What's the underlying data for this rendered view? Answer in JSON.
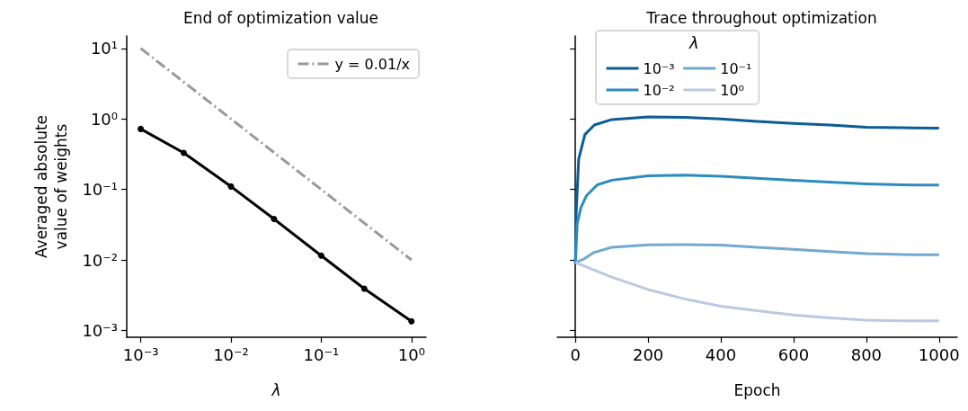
{
  "chart_data": [
    {
      "type": "line",
      "title": "End of optimization value",
      "xlabel": "λ",
      "ylabel": "Averaged absolute\nvalue of weights",
      "log": "xy",
      "legend": "top right",
      "xlim": [
        0.0007,
        1.45
      ],
      "xticks": [
        {
          "value": 0.001,
          "label": "10⁻³"
        },
        {
          "value": 0.01,
          "label": "10⁻²"
        },
        {
          "value": 0.1,
          "label": "10⁻¹"
        },
        {
          "value": 1,
          "label": "10⁰"
        }
      ],
      "ylim": [
        0.0008,
        15
      ],
      "yticks": [
        {
          "value": 0.001,
          "label": "10⁻³"
        },
        {
          "value": 0.01,
          "label": "10⁻²"
        },
        {
          "value": 0.1,
          "label": "10⁻¹"
        },
        {
          "value": 1,
          "label": "10⁰"
        },
        {
          "value": 10,
          "label": "10¹"
        }
      ],
      "x": [
        0.001,
        0.003,
        0.01,
        0.03,
        0.1,
        0.3,
        1
      ],
      "series": [
        {
          "color": "#000000",
          "marker": "circle",
          "line_style": "solid",
          "values": [
            0.72,
            0.33,
            0.11,
            0.038,
            0.0115,
            0.0039,
            0.00135
          ]
        },
        {
          "name": "y = 0.01/x",
          "color": "#999999",
          "marker": "none",
          "line_style": "dashed",
          "x": [
            0.001,
            1
          ],
          "values": [
            10,
            0.01
          ]
        }
      ]
    },
    {
      "type": "line",
      "title": "Trace throughout optimization",
      "xlabel": "Epoch",
      "log": "y",
      "legend": "top",
      "legend_title": "λ",
      "tick_labels": "x",
      "xlim": [
        -50,
        1050
      ],
      "xticks": [
        0,
        200,
        400,
        600,
        800,
        1000
      ],
      "ylim": [
        0.0008,
        15
      ],
      "yticks": [
        0.001,
        0.01,
        0.1,
        1,
        10
      ],
      "series": [
        {
          "name": "10⁻³",
          "color": "#0b5d95",
          "x": [
            0,
            2,
            9,
            26,
            52,
            100,
            200,
            300,
            400,
            500,
            600,
            700,
            800,
            900,
            1000
          ],
          "values": [
            0.0092,
            0.045,
            0.27,
            0.6,
            0.82,
            0.98,
            1.07,
            1.05,
            1.0,
            0.92,
            0.86,
            0.82,
            0.76,
            0.75,
            0.74
          ]
        },
        {
          "name": "10⁻²",
          "color": "#2b8cbe",
          "x": [
            0,
            5,
            15,
            30,
            60,
            100,
            200,
            300,
            400,
            500,
            600,
            700,
            800,
            900,
            1000
          ],
          "values": [
            0.0092,
            0.033,
            0.055,
            0.081,
            0.116,
            0.135,
            0.156,
            0.159,
            0.153,
            0.144,
            0.135,
            0.127,
            0.12,
            0.116,
            0.115
          ]
        },
        {
          "name": "10⁻¹",
          "color": "#74a9cf",
          "x": [
            0,
            20,
            50,
            100,
            200,
            300,
            400,
            500,
            600,
            700,
            800,
            900,
            1000
          ],
          "values": [
            0.0092,
            0.0101,
            0.0127,
            0.0151,
            0.0164,
            0.0165,
            0.0162,
            0.0151,
            0.0141,
            0.0131,
            0.0123,
            0.0119,
            0.0118
          ]
        },
        {
          "name": "10⁰",
          "color": "#bdc9e1",
          "x": [
            0,
            100,
            200,
            300,
            400,
            500,
            600,
            700,
            800,
            900,
            1000
          ],
          "values": [
            0.0092,
            0.0057,
            0.0038,
            0.0028,
            0.0022,
            0.0019,
            0.00166,
            0.0015,
            0.0014,
            0.00137,
            0.00137
          ]
        }
      ]
    }
  ]
}
